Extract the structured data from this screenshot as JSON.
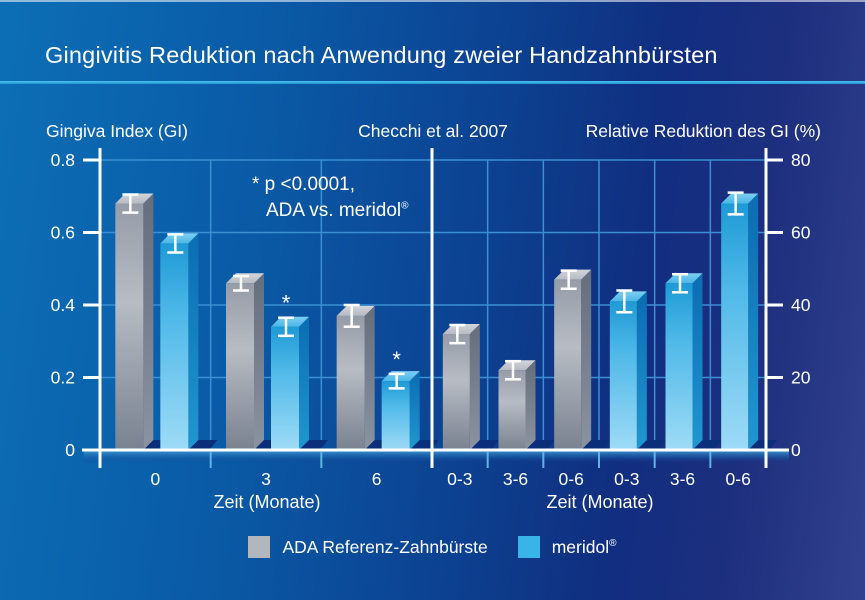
{
  "header": {
    "title": "Gingivitis Reduktion nach Anwendung zweier Handzahnbürsten"
  },
  "subheader": {
    "left": "Gingiva Index (GI)",
    "center": "Checchi et al. 2007",
    "right": "Relative Reduktion des GI (%)"
  },
  "annotation": {
    "line1": "* p <0.0001,",
    "line2": "ADA vs. meridol",
    "registered": "®"
  },
  "captions": {
    "left": "Zeit (Monate)",
    "right": "Zeit (Monate)"
  },
  "legend": {
    "items": [
      {
        "label": "ADA Referenz-Zahnbürste",
        "series": "ada",
        "color": "#B2B7BE"
      },
      {
        "label": "meridol",
        "registered": "®",
        "series": "meridol",
        "color": "#38B4E8"
      }
    ]
  },
  "colors": {
    "background_left": "#0C6FB5",
    "background_right": "#32418F",
    "divider": "#35ACDF",
    "grid": "#3B8FD2",
    "axis": "#FFFFFF",
    "minor_tick": "#5FB4E6",
    "shadow": "#0A2E7A",
    "text": "#FFFFFF",
    "series": {
      "ada": {
        "front": [
          "#969CA8",
          "#B7BCC4",
          "#7A8290"
        ],
        "top": [
          "#D2D5DA",
          "#B6BAC2"
        ],
        "side": [
          "#666E7C",
          "#8B92A0"
        ]
      },
      "meridol": {
        "front": [
          "#1E9AD6",
          "#4FB9E8",
          "#9EDBF6"
        ],
        "top": [
          "#7ECFF2",
          "#49B6E6"
        ],
        "side": [
          "#0B6CB2",
          "#2097D0"
        ]
      }
    }
  },
  "chart_data": [
    {
      "type": "bar",
      "panel": "left",
      "title": "Gingiva Index (GI)",
      "xlabel": "Zeit (Monate)",
      "ylabel": "Gingiva Index (GI)",
      "ylim": [
        0,
        0.8
      ],
      "yticks": [
        0,
        0.2,
        0.4,
        0.6,
        0.8
      ],
      "ytick_labels": [
        "0",
        "0.2",
        "0.4",
        "0.6",
        "0.8"
      ],
      "axis_side": "left",
      "grid": true,
      "categories": [
        "0",
        "3",
        "6"
      ],
      "series": [
        {
          "name": "ADA Referenz-Zahnbürste",
          "key": "ada",
          "values": [
            0.68,
            0.46,
            0.37
          ],
          "errors": [
            0.025,
            0.02,
            0.03
          ],
          "significant": [
            false,
            false,
            false
          ]
        },
        {
          "name": "meridol®",
          "key": "meridol",
          "values": [
            0.57,
            0.34,
            0.19
          ],
          "errors": [
            0.025,
            0.025,
            0.02
          ],
          "significant": [
            false,
            true,
            true
          ]
        }
      ],
      "annotation": "* p <0.0001, ADA vs. meridol®"
    },
    {
      "type": "bar",
      "panel": "right",
      "title": "Relative Reduktion des GI (%)",
      "xlabel": "Zeit (Monate)",
      "ylim": [
        0,
        80
      ],
      "yticks": [
        0,
        20,
        40,
        60,
        80
      ],
      "ytick_labels": [
        "0",
        "20",
        "40",
        "60",
        "80"
      ],
      "axis_side": "right",
      "grid": true,
      "categories": [
        "0-3",
        "3-6",
        "0-6",
        "0-3",
        "3-6",
        "0-6"
      ],
      "bars": [
        {
          "category": "0-3",
          "series": "ada",
          "value": 32,
          "error": 2.5
        },
        {
          "category": "3-6",
          "series": "ada",
          "value": 22,
          "error": 2.5
        },
        {
          "category": "0-6",
          "series": "ada",
          "value": 47,
          "error": 2.5
        },
        {
          "category": "0-3",
          "series": "meridol",
          "value": 41,
          "error": 3
        },
        {
          "category": "3-6",
          "series": "meridol",
          "value": 46,
          "error": 2.5
        },
        {
          "category": "0-6",
          "series": "meridol",
          "value": 68,
          "error": 3
        }
      ]
    }
  ]
}
